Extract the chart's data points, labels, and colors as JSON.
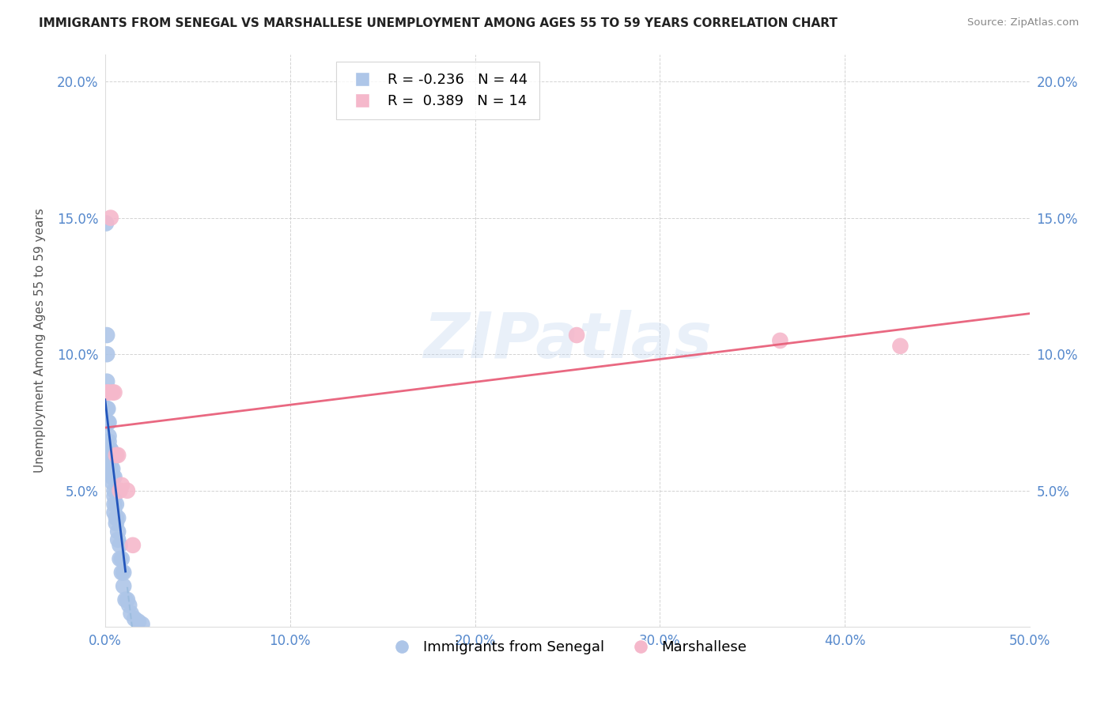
{
  "title": "IMMIGRANTS FROM SENEGAL VS MARSHALLESE UNEMPLOYMENT AMONG AGES 55 TO 59 YEARS CORRELATION CHART",
  "source": "Source: ZipAtlas.com",
  "ylabel": "Unemployment Among Ages 55 to 59 years",
  "xlim": [
    0,
    0.5
  ],
  "ylim": [
    0,
    0.21
  ],
  "xticks": [
    0.0,
    0.1,
    0.2,
    0.3,
    0.4,
    0.5
  ],
  "xtick_labels": [
    "0.0%",
    "10.0%",
    "20.0%",
    "30.0%",
    "40.0%",
    "50.0%"
  ],
  "yticks_left": [
    0.0,
    0.05,
    0.1,
    0.15,
    0.2
  ],
  "ytick_labels_left": [
    "",
    "5.0%",
    "10.0%",
    "15.0%",
    "20.0%"
  ],
  "yticks_right": [
    0.05,
    0.1,
    0.15,
    0.2
  ],
  "ytick_labels_right": [
    "5.0%",
    "10.0%",
    "15.0%",
    "20.0%"
  ],
  "legend1_R": "-0.236",
  "legend1_N": "44",
  "legend2_R": " 0.389",
  "legend2_N": "14",
  "blue_dot_color": "#aec6e8",
  "pink_dot_color": "#f5b8cb",
  "blue_line_solid_color": "#2255bb",
  "blue_line_dash_color": "#99bbdd",
  "pink_line_color": "#e8607a",
  "watermark": "ZIPatlas",
  "tick_color": "#5588cc",
  "senegal_x": [
    0.0005,
    0.001,
    0.001,
    0.001,
    0.001,
    0.0015,
    0.0015,
    0.002,
    0.002,
    0.002,
    0.002,
    0.003,
    0.003,
    0.003,
    0.003,
    0.003,
    0.004,
    0.004,
    0.004,
    0.004,
    0.005,
    0.005,
    0.005,
    0.005,
    0.005,
    0.006,
    0.006,
    0.006,
    0.007,
    0.007,
    0.007,
    0.008,
    0.008,
    0.009,
    0.009,
    0.01,
    0.01,
    0.011,
    0.012,
    0.013,
    0.014,
    0.016,
    0.018,
    0.02
  ],
  "senegal_y": [
    0.148,
    0.107,
    0.1,
    0.09,
    0.08,
    0.08,
    0.075,
    0.075,
    0.07,
    0.068,
    0.065,
    0.065,
    0.065,
    0.062,
    0.06,
    0.058,
    0.058,
    0.055,
    0.055,
    0.053,
    0.055,
    0.05,
    0.048,
    0.045,
    0.042,
    0.045,
    0.04,
    0.038,
    0.04,
    0.035,
    0.032,
    0.03,
    0.025,
    0.025,
    0.02,
    0.02,
    0.015,
    0.01,
    0.01,
    0.008,
    0.005,
    0.003,
    0.002,
    0.001
  ],
  "marshallese_x": [
    0.001,
    0.002,
    0.003,
    0.004,
    0.005,
    0.006,
    0.007,
    0.008,
    0.009,
    0.012,
    0.255,
    0.365,
    0.43,
    0.015
  ],
  "marshallese_y": [
    0.086,
    0.086,
    0.15,
    0.086,
    0.086,
    0.063,
    0.063,
    0.05,
    0.052,
    0.05,
    0.107,
    0.105,
    0.103,
    0.03
  ],
  "senegal_line_break_x": 0.012,
  "pink_line_y_at_0": 0.073,
  "pink_line_y_at_50": 0.138
}
